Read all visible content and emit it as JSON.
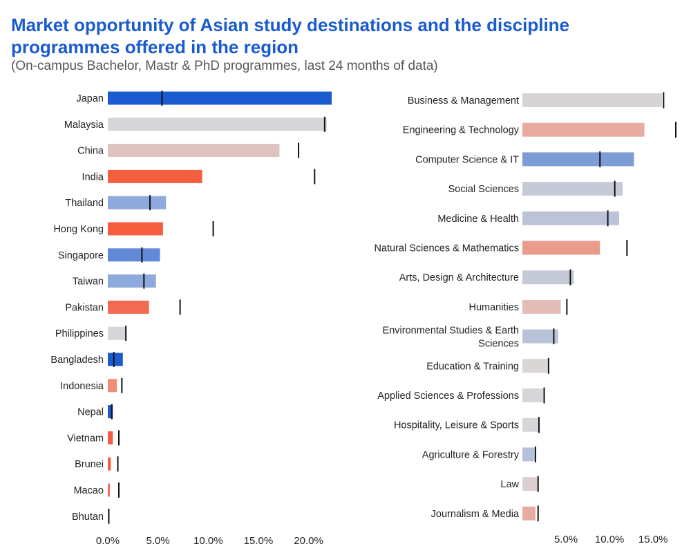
{
  "title": "Market opportunity of Asian study destinations and the discipline programmes offered in the region",
  "subtitle": "(On-campus Bachelor, Mastr & PhD programmes, last 24 months of data)",
  "chart_data": [
    {
      "type": "bar",
      "orientation": "horizontal",
      "categories": [
        "Japan",
        "Malaysia",
        "China",
        "India",
        "Thailand",
        "Hong Kong",
        "Singapore",
        "Taiwan",
        "Pakistan",
        "Philippines",
        "Bangladesh",
        "Indonesia",
        "Nepal",
        "Vietnam",
        "Brunei",
        "Macao",
        "Bhutan"
      ],
      "values": [
        22.3,
        21.8,
        17.1,
        9.4,
        5.8,
        5.5,
        5.2,
        4.8,
        4.1,
        1.8,
        1.5,
        0.9,
        0.5,
        0.5,
        0.3,
        0.2,
        0.0
      ],
      "markers": [
        5.4,
        21.6,
        19.0,
        20.6,
        4.2,
        10.5,
        3.4,
        3.6,
        7.2,
        1.8,
        0.6,
        1.4,
        0.4,
        1.1,
        1.0,
        1.1,
        0.1
      ],
      "colors": [
        "#1a5bd0",
        "#d6d6da",
        "#e0c3c0",
        "#f55f3f",
        "#8ea9dc",
        "#f55f3f",
        "#6189d8",
        "#8ea9dc",
        "#f26a4f",
        "#d6d6da",
        "#1a5bd0",
        "#f58c78",
        "#1a5bd0",
        "#f55f3f",
        "#f55f3f",
        "#f26a4f",
        "#d6d6da"
      ],
      "xticks": [
        "0.0%",
        "5.0%",
        "10.0%",
        "15.0%",
        "20.0%"
      ],
      "xlim": [
        0,
        22.3
      ]
    },
    {
      "type": "bar",
      "orientation": "horizontal",
      "categories": [
        "Business & Management",
        "Engineering & Technology",
        "Computer Science & IT",
        "Social Sciences",
        "Medicine & Health",
        "Natural Sciences & Mathematics",
        "Arts, Design & Architecture",
        "Humanities",
        "Environmental Studies & Earth Sciences",
        "Education & Training",
        "Applied Sciences & Professions",
        "Hospitality, Leisure & Sports",
        "Agriculture & Forestry",
        "Law",
        "Journalism & Media"
      ],
      "values": [
        16.0,
        14.0,
        12.8,
        11.5,
        11.1,
        8.9,
        5.9,
        4.4,
        4.1,
        2.9,
        2.4,
        1.9,
        1.5,
        1.8,
        1.5
      ],
      "markers": [
        16.2,
        17.6,
        8.9,
        10.6,
        9.8,
        12.0,
        5.5,
        5.1,
        3.6,
        3.0,
        2.5,
        1.9,
        1.5,
        1.8,
        1.8
      ],
      "colors": [
        "#d8d4d5",
        "#e8aba1",
        "#7d9bd4",
        "#c6cad7",
        "#bcc3d8",
        "#e99b8c",
        "#c6cad7",
        "#e2bdb8",
        "#b8c3da",
        "#dbd6d6",
        "#d6d6da",
        "#d6d6da",
        "#b6c2dd",
        "#ddcfcf",
        "#e8aba1"
      ],
      "xticks": [
        "5.0%",
        "10.0%",
        "15.0%"
      ],
      "xlim": [
        0,
        17.6
      ]
    }
  ]
}
